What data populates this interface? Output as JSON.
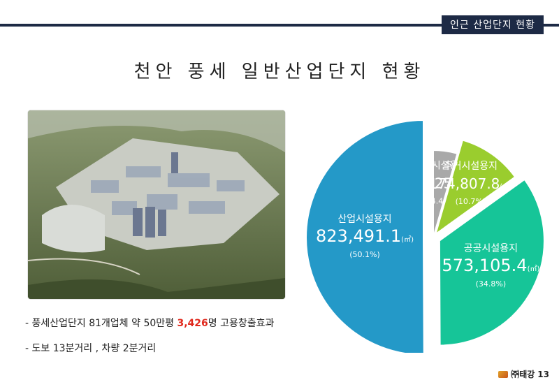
{
  "header": {
    "section_tag": "인근 산업단지 현황",
    "title": "천안 풍세 일반산업단지 현황"
  },
  "notes": [
    {
      "prefix": "- 풍세산업단지 81개업체 약 50만평 ",
      "highlight": "3,426",
      "suffix": "명 고용창출효과"
    },
    {
      "prefix": "- 도보 13분거리 , 차량 2분거리",
      "highlight": "",
      "suffix": ""
    }
  ],
  "footer": {
    "company": "㈜태강",
    "page": "13"
  },
  "chart_data": {
    "type": "pie",
    "unit": "(㎡)",
    "slices": [
      {
        "label": "지원시설용지",
        "value": 73125.1,
        "value_text": "73,125.1",
        "percent_text": "(4.4%)",
        "color": "#a9a9a9"
      },
      {
        "label": "주거시설용지",
        "value": 174807.8,
        "value_text": "174,807.8",
        "percent_text": "(10.7%)",
        "color": "#9acd2e"
      },
      {
        "label": "공공시설용지",
        "value": 573105.4,
        "value_text": "573,105.4",
        "percent_text": "(34.8%)",
        "color": "#16c598"
      },
      {
        "label": "산업시설용지",
        "value": 823491.1,
        "value_text": "823,491.1",
        "percent_text": "(50.1%)",
        "color": "#2499c8"
      }
    ]
  }
}
